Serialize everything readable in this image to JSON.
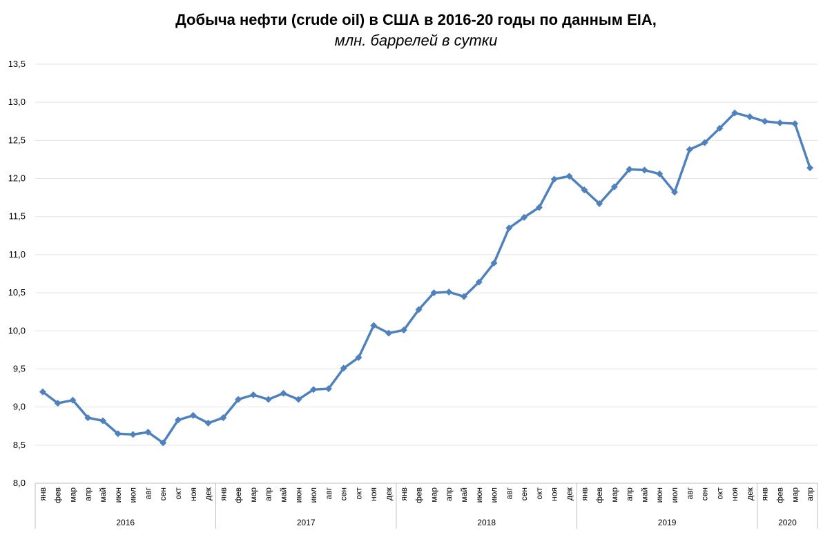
{
  "chart_data": {
    "type": "line",
    "title": "Добыча нефти (crude oil) в США в 2016-20 годы по данным EIA,",
    "subtitle": "млн. баррелей в сутки",
    "xlabel": "",
    "ylabel": "",
    "ylim": [
      8.0,
      13.5
    ],
    "yticks": [
      "8,0",
      "8,5",
      "9,0",
      "9,5",
      "10,0",
      "10,5",
      "11,0",
      "11,5",
      "12,0",
      "12,5",
      "13,0",
      "13,5"
    ],
    "grid": true,
    "legend": "none",
    "series_color": "#4F81BD",
    "categories": [
      "янв",
      "фев",
      "мар",
      "апр",
      "май",
      "июн",
      "июл",
      "авг",
      "сен",
      "окт",
      "ноя",
      "дек",
      "янв",
      "фев",
      "мар",
      "апр",
      "май",
      "июн",
      "июл",
      "авг",
      "сен",
      "окт",
      "ноя",
      "дек",
      "янв",
      "фев",
      "мар",
      "апр",
      "май",
      "июн",
      "июл",
      "авг",
      "сен",
      "окт",
      "ноя",
      "дек",
      "янв",
      "фев",
      "мар",
      "апр",
      "май",
      "июн",
      "июл",
      "авг",
      "сен",
      "окт",
      "ноя",
      "дек",
      "янв",
      "фев",
      "мар",
      "апр"
    ],
    "groups": [
      {
        "label": "2016",
        "count": 12
      },
      {
        "label": "2017",
        "count": 12
      },
      {
        "label": "2018",
        "count": 12
      },
      {
        "label": "2019",
        "count": 12
      },
      {
        "label": "2020",
        "count": 4
      }
    ],
    "series": [
      {
        "values": [
          9.2,
          9.05,
          9.09,
          8.86,
          8.82,
          8.65,
          8.64,
          8.67,
          8.53,
          8.83,
          8.89,
          8.79,
          8.86,
          9.1,
          9.16,
          9.1,
          9.18,
          9.1,
          9.23,
          9.24,
          9.51,
          9.65,
          10.07,
          9.97,
          10.01,
          10.28,
          10.5,
          10.51,
          10.45,
          10.64,
          10.89,
          11.35,
          11.49,
          11.62,
          11.99,
          12.03,
          11.85,
          11.67,
          11.89,
          12.12,
          12.11,
          12.06,
          11.82,
          12.38,
          12.47,
          12.66,
          12.86,
          12.81,
          12.75,
          12.73,
          12.72,
          12.14
        ]
      }
    ]
  }
}
